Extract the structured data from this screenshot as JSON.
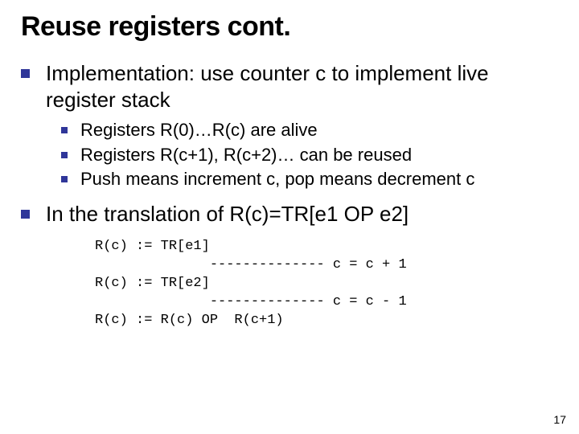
{
  "title": "Reuse registers cont.",
  "bullet_color": "#2f3699",
  "text_color": "#000000",
  "background_color": "#ffffff",
  "title_fontsize": 34,
  "lvl1_fontsize": 26,
  "lvl2_fontsize": 22,
  "code_fontsize": 17,
  "lvl1_bullet_size": 11,
  "lvl2_bullet_size": 8,
  "items": {
    "p1": "Implementation: use counter c to implement live register stack",
    "p1_sub": [
      "Registers R(0)…R(c) are alive",
      "Registers R(c+1), R(c+2)… can be reused",
      "Push means increment c, pop means decrement c"
    ],
    "p2": "In the translation of R(c)=TR[e1 OP e2]"
  },
  "code": "R(c) := TR[e1]\n              -------------- c = c + 1\nR(c) := TR[e2]\n              -------------- c = c - 1\nR(c) := R(c) OP  R(c+1)",
  "page_number": "17"
}
